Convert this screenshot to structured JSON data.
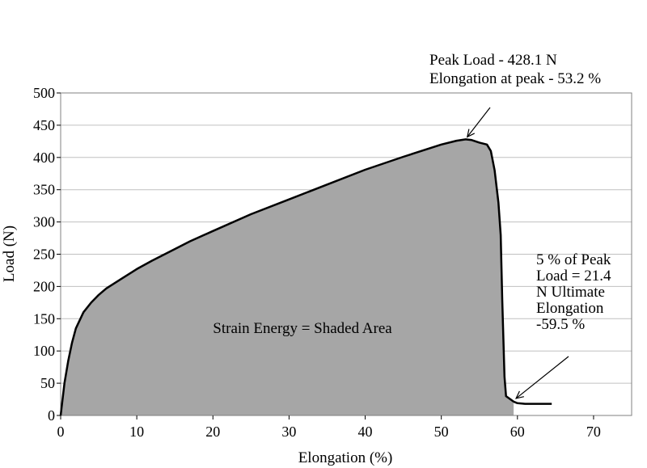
{
  "chart_data": {
    "type": "area",
    "title": "",
    "xlabel": "Elongation (%)",
    "ylabel": "Load (N)",
    "xlim": [
      0,
      75
    ],
    "ylim": [
      0,
      500
    ],
    "x_ticks": [
      0,
      10,
      20,
      30,
      40,
      50,
      60,
      70
    ],
    "y_ticks": [
      0,
      50,
      100,
      150,
      200,
      250,
      300,
      350,
      400,
      450,
      500
    ],
    "grid": "horizontal",
    "colors": {
      "fill": "#a6a6a6",
      "line": "#000000",
      "grid": "#c0c0c0",
      "plot_border": "#808080"
    },
    "series": [
      {
        "name": "",
        "x": [
          0,
          0.5,
          1,
          1.5,
          2,
          3,
          4,
          5,
          6,
          8,
          10,
          12,
          15,
          17,
          20,
          25,
          30,
          35,
          40,
          45,
          50,
          52,
          53.2,
          54,
          55,
          56,
          56.5,
          57,
          57.5,
          57.8,
          58,
          58.3,
          58.5,
          59.5,
          60,
          61,
          62,
          63,
          64,
          64.5
        ],
        "y": [
          0,
          50,
          85,
          113,
          135,
          160,
          175,
          187,
          197,
          212,
          227,
          240,
          258,
          270,
          286,
          312,
          335,
          358,
          381,
          401,
          420,
          426,
          428.1,
          427,
          423,
          420,
          410,
          380,
          330,
          280,
          180,
          60,
          30,
          21.4,
          19,
          18,
          18,
          18,
          18,
          18
        ]
      }
    ],
    "shaded_region": {
      "x_from": 0,
      "x_to": 59.5
    },
    "annotations": [
      {
        "lines": [
          "Peak Load - 428.1 N",
          "Elongation at peak - 53.2 %"
        ],
        "arrow_to": [
          53.2,
          428.1
        ]
      },
      {
        "lines": [
          "5 % of Peak",
          "Load = 21.4",
          "N Ultimate",
          "Elongation",
          "-59.5 %"
        ],
        "arrow_to": [
          59.5,
          21.4
        ]
      }
    ],
    "inner_label": "Strain Energy = Shaded Area"
  }
}
